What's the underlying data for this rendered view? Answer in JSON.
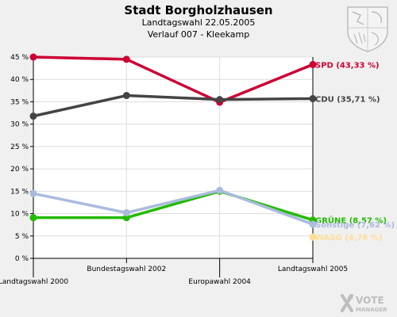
{
  "header": {
    "title": "Stadt Borgholzhausen",
    "subtitle": "Landtagswahl 22.05.2005",
    "subtitle2": "Verlauf 007 - Kleekamp"
  },
  "logo": {
    "word1": "VOTE",
    "word2": "MANAGER"
  },
  "chart_data": {
    "type": "line",
    "title": "Stadt Borgholzhausen",
    "x": [
      "Landtagswahl 2000",
      "Bundestagswahl 2002",
      "Europawahl 2004",
      "Landtagswahl 2005"
    ],
    "ylim": [
      0,
      45
    ],
    "yticks": [
      "0 %",
      "5 %",
      "10 %",
      "15 %",
      "20 %",
      "25 %",
      "30 %",
      "35 %",
      "40 %",
      "45 %"
    ],
    "ytick_values": [
      0,
      5,
      10,
      15,
      20,
      25,
      30,
      35,
      40,
      45
    ],
    "grid": true,
    "series": [
      {
        "name": "SPD",
        "label": "SPD (43,33 %)",
        "color": "#cc0033",
        "values": [
          45.0,
          44.5,
          34.9,
          43.33
        ]
      },
      {
        "name": "CDU",
        "label": "CDU (35,71 %)",
        "color": "#444444",
        "values": [
          31.8,
          36.4,
          35.5,
          35.71
        ]
      },
      {
        "name": "GRÜNE",
        "label": "GRÜNE (8,57 %)",
        "color": "#22bb00",
        "values": [
          9.1,
          9.1,
          15.0,
          8.57
        ]
      },
      {
        "name": "Sonstige",
        "label": "Sonstige (7,62 %)",
        "color": "#aabbdd",
        "values": [
          14.5,
          10.2,
          15.2,
          7.62
        ]
      },
      {
        "name": "WASG",
        "label": "WASG (4,76 %)",
        "color": "#ffdd99",
        "values": [
          null,
          null,
          null,
          4.76
        ]
      }
    ]
  }
}
